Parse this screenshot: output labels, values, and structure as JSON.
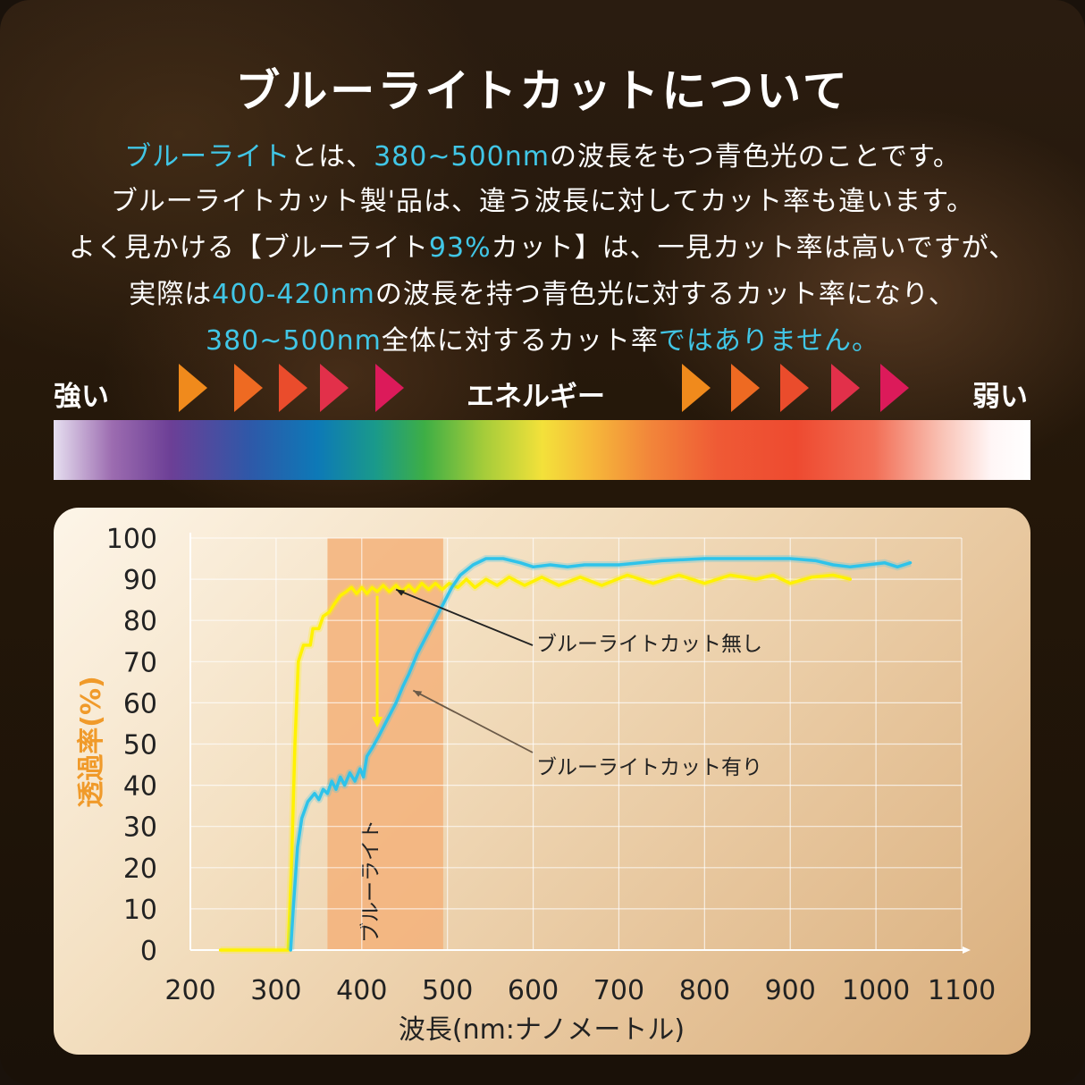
{
  "title": "ブルーライトカットについて",
  "lines": [
    [
      {
        "t": "ブルーライト",
        "hl": true
      },
      {
        "t": "とは、",
        "hl": false
      },
      {
        "t": "380~500nm",
        "hl": true
      },
      {
        "t": "の波長をもつ青色光のことです。",
        "hl": false
      }
    ],
    [
      {
        "t": "ブルーライトカット製'品は、違う波長に対してカット率も違います。",
        "hl": false
      }
    ],
    [
      {
        "t": "よく見かける【ブルーライト",
        "hl": false
      },
      {
        "t": "93%",
        "hl": true
      },
      {
        "t": "カット】は、一見カット率は高いですが、",
        "hl": false
      }
    ],
    [
      {
        "t": "実際は",
        "hl": false
      },
      {
        "t": "400-420nm",
        "hl": true
      },
      {
        "t": "の波長を持つ青色光に対するカット率になり、",
        "hl": false
      }
    ],
    [
      {
        "t": "380~500nm",
        "hl": true
      },
      {
        "t": "全体に対するカット率",
        "hl": false
      },
      {
        "t": "ではありません。",
        "hl": true
      }
    ]
  ],
  "energy": {
    "strong": "強い",
    "label": "エネルギー",
    "weak": "弱い",
    "arrow_colors": [
      "#f08a1c",
      "#ee6a22",
      "#ea4c2c",
      "#e2304a",
      "#dc1a5a"
    ]
  },
  "colors": {
    "highlight": "#41c6e6",
    "no_cut": "#fff200",
    "with_cut": "#2ec3ea",
    "band": "#f3b27a",
    "ylabel": "#f09a2a"
  },
  "chart_data": {
    "type": "line",
    "xlabel": "波長(nm:ナノメートル)",
    "ylabel": "透過率(%)",
    "xlim": [
      200,
      1100
    ],
    "ylim": [
      0,
      100
    ],
    "xticks": [
      200,
      300,
      400,
      500,
      600,
      700,
      800,
      900,
      1000,
      1100
    ],
    "yticks": [
      0,
      10,
      20,
      30,
      40,
      50,
      60,
      70,
      80,
      90,
      100
    ],
    "grid": true,
    "band": {
      "label": "ブルーライト",
      "from": 360,
      "to": 495
    },
    "arrow": {
      "x": 418,
      "from": 86,
      "to": 54
    },
    "series": [
      {
        "name": "ブルーライトカット無し",
        "color": "#fff200",
        "points": [
          [
            235,
            0
          ],
          [
            314,
            0
          ],
          [
            318,
            20
          ],
          [
            322,
            50
          ],
          [
            326,
            70
          ],
          [
            332,
            74
          ],
          [
            340,
            74
          ],
          [
            343,
            78
          ],
          [
            350,
            78
          ],
          [
            355,
            81
          ],
          [
            362,
            82
          ],
          [
            368,
            84
          ],
          [
            375,
            86
          ],
          [
            382,
            87
          ],
          [
            388,
            88
          ],
          [
            394,
            86.5
          ],
          [
            400,
            88
          ],
          [
            406,
            86.5
          ],
          [
            412,
            88
          ],
          [
            418,
            87
          ],
          [
            425,
            88.5
          ],
          [
            432,
            87
          ],
          [
            440,
            88.5
          ],
          [
            447,
            87
          ],
          [
            455,
            88.5
          ],
          [
            462,
            87
          ],
          [
            470,
            89
          ],
          [
            478,
            87.5
          ],
          [
            486,
            89
          ],
          [
            494,
            87.5
          ],
          [
            502,
            89
          ],
          [
            512,
            88
          ],
          [
            522,
            90
          ],
          [
            532,
            88
          ],
          [
            545,
            90
          ],
          [
            558,
            88.5
          ],
          [
            572,
            90.5
          ],
          [
            590,
            88.5
          ],
          [
            610,
            90.5
          ],
          [
            630,
            88.5
          ],
          [
            655,
            90.5
          ],
          [
            680,
            88.5
          ],
          [
            710,
            91
          ],
          [
            740,
            89
          ],
          [
            770,
            91
          ],
          [
            800,
            89
          ],
          [
            830,
            91
          ],
          [
            860,
            90
          ],
          [
            880,
            91
          ],
          [
            900,
            89
          ],
          [
            925,
            90.5
          ],
          [
            950,
            91
          ],
          [
            970,
            90
          ]
        ]
      },
      {
        "name": "ブルーライトカット有り",
        "color": "#2ec3ea",
        "points": [
          [
            317,
            0
          ],
          [
            320,
            10
          ],
          [
            325,
            25
          ],
          [
            330,
            32
          ],
          [
            337,
            36
          ],
          [
            345,
            38
          ],
          [
            350,
            36.5
          ],
          [
            355,
            39
          ],
          [
            360,
            38
          ],
          [
            365,
            41
          ],
          [
            370,
            39
          ],
          [
            375,
            42
          ],
          [
            380,
            40
          ],
          [
            386,
            43
          ],
          [
            392,
            41
          ],
          [
            398,
            44
          ],
          [
            402,
            42
          ],
          [
            406,
            47
          ],
          [
            412,
            49
          ],
          [
            420,
            52
          ],
          [
            430,
            56
          ],
          [
            440,
            60
          ],
          [
            448,
            64
          ],
          [
            455,
            67
          ],
          [
            465,
            72
          ],
          [
            475,
            76
          ],
          [
            485,
            80
          ],
          [
            495,
            84
          ],
          [
            505,
            88
          ],
          [
            515,
            91
          ],
          [
            530,
            93.5
          ],
          [
            545,
            95
          ],
          [
            565,
            95
          ],
          [
            585,
            94
          ],
          [
            600,
            93
          ],
          [
            620,
            93.5
          ],
          [
            640,
            93
          ],
          [
            660,
            93.5
          ],
          [
            700,
            93.5
          ],
          [
            750,
            94.5
          ],
          [
            800,
            95
          ],
          [
            850,
            95
          ],
          [
            900,
            95
          ],
          [
            930,
            94.5
          ],
          [
            950,
            93.5
          ],
          [
            970,
            93
          ],
          [
            990,
            93.5
          ],
          [
            1010,
            94
          ],
          [
            1025,
            93
          ],
          [
            1040,
            94
          ]
        ]
      }
    ],
    "annotations": [
      {
        "text": "ブルーライトカット無し",
        "at": [
          440,
          87.5
        ]
      },
      {
        "text": "ブルーライトカット有り",
        "at": [
          460,
          63
        ]
      }
    ]
  }
}
